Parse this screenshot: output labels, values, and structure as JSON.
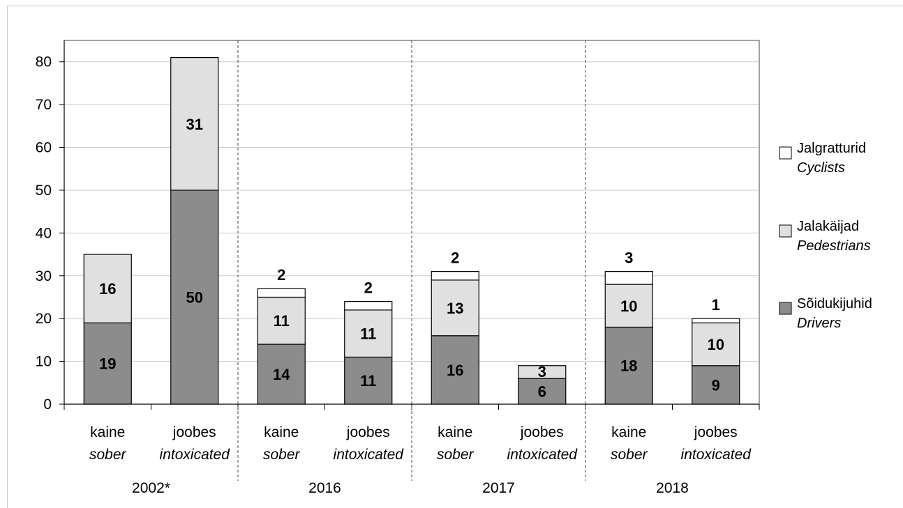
{
  "chart_data": {
    "type": "bar",
    "stacked": true,
    "ylim": [
      0,
      85
    ],
    "yticks": [
      0,
      10,
      20,
      30,
      40,
      50,
      60,
      70,
      80
    ],
    "grid": true,
    "legend_position": "right",
    "groups": [
      "2002*",
      "2016",
      "2017",
      "2018"
    ],
    "categories": [
      {
        "group": "2002*",
        "label": "kaine",
        "label_en": "sober"
      },
      {
        "group": "2002*",
        "label": "joobes",
        "label_en": "intoxicated"
      },
      {
        "group": "2016",
        "label": "kaine",
        "label_en": "sober"
      },
      {
        "group": "2016",
        "label": "joobes",
        "label_en": "intoxicated"
      },
      {
        "group": "2017",
        "label": "kaine",
        "label_en": "sober"
      },
      {
        "group": "2017",
        "label": "joobes",
        "label_en": "intoxicated"
      },
      {
        "group": "2018",
        "label": "kaine",
        "label_en": "sober"
      },
      {
        "group": "2018",
        "label": "joobes",
        "label_en": "intoxicated"
      }
    ],
    "series": [
      {
        "name": "Sõidukijuhid",
        "name_en": "Drivers",
        "color": "#8c8c8c",
        "values": [
          19,
          50,
          14,
          11,
          16,
          6,
          18,
          9
        ]
      },
      {
        "name": "Jalakäijad",
        "name_en": "Pedestrians",
        "color": "#e0e0e0",
        "values": [
          16,
          31,
          11,
          11,
          13,
          3,
          10,
          10
        ]
      },
      {
        "name": "Jalgratturid",
        "name_en": "Cyclists",
        "color": "#ffffff",
        "values": [
          null,
          null,
          2,
          2,
          2,
          null,
          3,
          1
        ]
      }
    ]
  }
}
